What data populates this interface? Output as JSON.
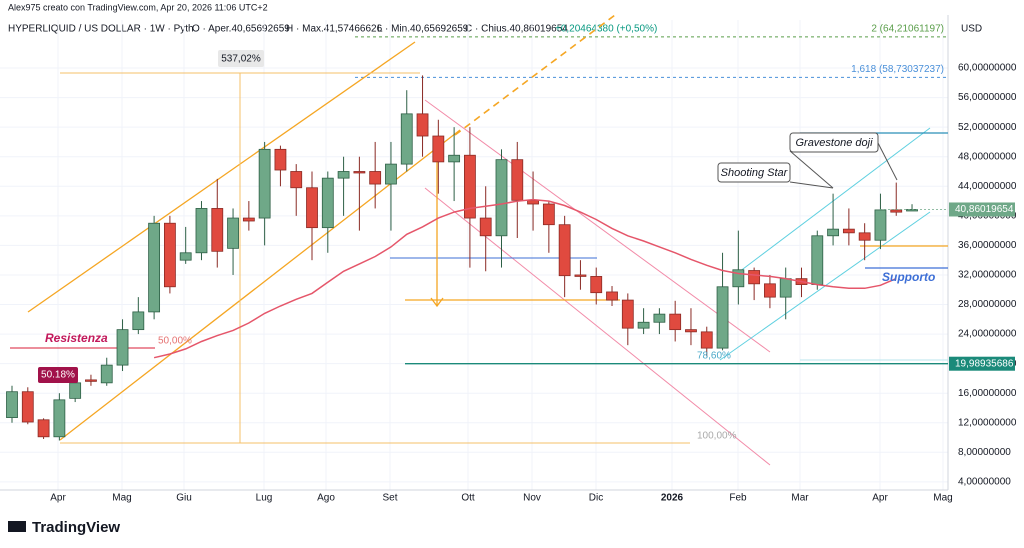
{
  "attribution": "Alex975 creato con TradingView.com, Apr 20, 2026 11:06 UTC+2",
  "header": {
    "symbol": "HYPERLIQUID / US DOLLAR · 1W · Pyth",
    "open": "O · Aper.40,65692659",
    "high": "H · Max.41,57466626",
    "low": "L · Min.40,65692659",
    "close": "C · Chius.40,86019654",
    "change": "+0,20464380 (+0,50%)"
  },
  "brand": "TradingView",
  "chart_data": {
    "type": "candlestick",
    "currency": "USD",
    "x_labels": [
      "Apr",
      "Mag",
      "Giu",
      "Lug",
      "Ago",
      "Set",
      "Ott",
      "Nov",
      "Dic",
      "2026",
      "Feb",
      "Mar",
      "Apr",
      "Mag"
    ],
    "open": [
      12.7,
      16.2,
      12.4,
      10.1,
      15.3,
      17.8,
      17.4,
      19.8,
      24.6,
      27,
      39,
      34,
      35,
      41,
      35.6,
      39.7,
      39.7,
      49,
      46,
      43.8,
      38.4,
      45.1,
      46,
      46,
      44.3,
      47,
      53.8,
      50.8,
      47.3,
      48.2,
      39.7,
      37.3,
      47.6,
      42.1,
      41.6,
      38.8,
      32,
      31.8,
      29.7,
      28.6,
      24.8,
      25.6,
      26.7,
      24.6,
      24.3,
      22.1,
      30.4,
      32.6,
      30.8,
      29,
      31.5,
      30.7,
      37.3,
      38.2,
      37.7,
      36.7,
      40.8,
      40.65692659
    ],
    "high": [
      17,
      16.8,
      12.6,
      16,
      19,
      18.5,
      20.8,
      26,
      29,
      40,
      40,
      38.5,
      42,
      45,
      41,
      42,
      50,
      49.5,
      47,
      46,
      46,
      48,
      48,
      50,
      50,
      57,
      59,
      53,
      52,
      52,
      44,
      49,
      50,
      46,
      42,
      40,
      34,
      33,
      30.5,
      29.5,
      27.5,
      27.5,
      28.5,
      27.5,
      25,
      35,
      38,
      33,
      32,
      33,
      33,
      38,
      43,
      41,
      39,
      43,
      44.5,
      41.57466626
    ],
    "low": [
      12,
      11.8,
      9.8,
      9.6,
      14.8,
      17,
      17,
      19,
      24,
      26,
      29.5,
      33.5,
      34,
      33,
      32,
      38,
      36,
      44,
      40,
      34,
      35,
      40,
      38,
      41,
      38,
      46,
      48,
      43,
      42,
      33,
      32.5,
      33,
      37,
      38,
      35,
      29,
      30,
      28,
      27.8,
      22.5,
      24,
      24,
      23,
      22.5,
      21,
      21.8,
      28,
      28.6,
      27.5,
      26,
      29,
      30,
      36,
      36,
      34,
      35.5,
      40,
      40.65692659
    ],
    "close": [
      16.2,
      12.1,
      10.1,
      15.1,
      17.4,
      17.6,
      19.8,
      24.6,
      27,
      39,
      30.4,
      35,
      41,
      35.2,
      39.7,
      39.3,
      49,
      46.2,
      43.8,
      38.4,
      45.1,
      46,
      45.8,
      44.3,
      47,
      53.8,
      50.8,
      47.3,
      48.2,
      39.7,
      37.3,
      47.6,
      42.1,
      41.6,
      38.8,
      31.9,
      31.8,
      29.6,
      28.6,
      24.8,
      25.6,
      26.7,
      24.6,
      24.3,
      22.1,
      30.4,
      32.7,
      30.8,
      29,
      31.5,
      30.7,
      37.3,
      38.2,
      37.7,
      36.7,
      40.8,
      40.5,
      40.86019654
    ],
    "moving_average": {
      "color": "#e5566a",
      "values": [
        null,
        null,
        null,
        null,
        null,
        null,
        null,
        null,
        null,
        20.8,
        21.3,
        22,
        23,
        23.8,
        24.5,
        25.5,
        26.8,
        27.8,
        28.7,
        29.5,
        31,
        32.5,
        33.5,
        34.5,
        35.8,
        37.5,
        38.5,
        39.7,
        40.5,
        41,
        41.3,
        41.6,
        42,
        42.2,
        42,
        41.4,
        40.5,
        39.5,
        38.3,
        37.3,
        36.6,
        35.8,
        35,
        34.1,
        33.3,
        32.6,
        32.2,
        32,
        31.8,
        31.5,
        31.1,
        30.7,
        30.4,
        30.2,
        30.2,
        30.6,
        31.5,
        null
      ]
    },
    "up_color": "#6fa888",
    "down_color": "#e04a3f",
    "ylim": [
      2.9,
      66.5
    ],
    "yticks": [
      {
        "value": 4,
        "label": "4,00000000"
      },
      {
        "value": 8,
        "label": "8,00000000"
      },
      {
        "value": 12,
        "label": "12,00000000"
      },
      {
        "value": 16,
        "label": "16,00000000"
      },
      {
        "value": 20,
        "label": "20,00000000"
      },
      {
        "value": 24,
        "label": "24,00000000"
      },
      {
        "value": 28,
        "label": "28,00000000"
      },
      {
        "value": 32,
        "label": "32,00000000"
      },
      {
        "value": 36,
        "label": "36,00000000"
      },
      {
        "value": 40,
        "label": "40,00000000"
      },
      {
        "value": 44,
        "label": "44,00000000"
      },
      {
        "value": 48,
        "label": "48,00000000"
      },
      {
        "value": 52,
        "label": "52,00000000"
      },
      {
        "value": 56,
        "label": "56,00000000"
      },
      {
        "value": 60,
        "label": "60,00000000"
      }
    ],
    "grid": true,
    "last_price": {
      "value": 40.86019654,
      "label": "40,86019654"
    },
    "level": {
      "value": 19.98935686,
      "label": "19,98935686"
    },
    "fib_levels": [
      {
        "value": 64.21061197,
        "label": "2 (64,21061197)"
      },
      {
        "value": 58.73037237,
        "label": "1,618 (58,73037237)"
      }
    ],
    "annotations": {
      "range": "537,02%",
      "resistance": "Resistenza",
      "half": "50,00%",
      "pct": "50.18%",
      "shooting_star": "Shooting Star",
      "gravestone": "Gravestone doji",
      "support": "Supporto",
      "fib786": "78,60%",
      "fib100": "100,00%"
    }
  }
}
